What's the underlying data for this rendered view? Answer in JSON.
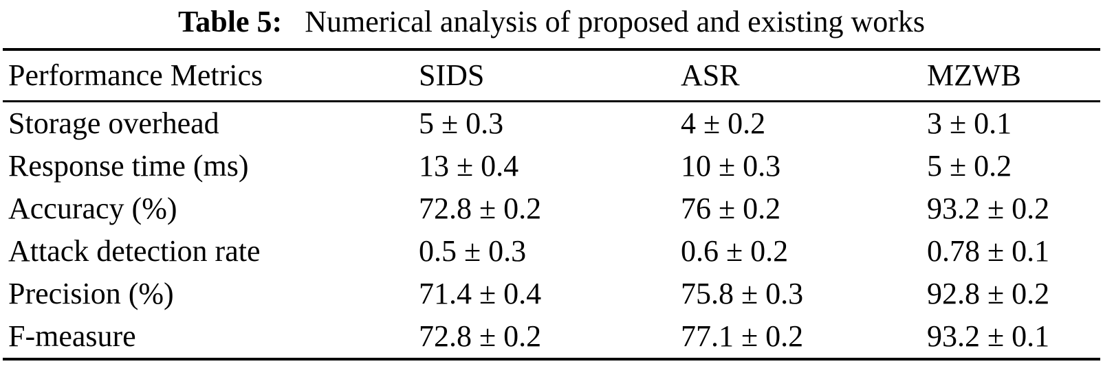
{
  "caption": {
    "label": "Table 5:",
    "text": "Numerical analysis of proposed and existing works"
  },
  "table": {
    "columns": [
      "Performance Metrics",
      "SIDS",
      "ASR",
      "MZWB"
    ],
    "rows": [
      [
        "Storage overhead",
        "5 ± 0.3",
        "4 ± 0.2",
        "3 ± 0.1"
      ],
      [
        "Response time (ms)",
        "13 ± 0.4",
        "10 ± 0.3",
        "5 ± 0.2"
      ],
      [
        "Accuracy (%)",
        "72.8 ± 0.2",
        "76 ± 0.2",
        "93.2 ± 0.2"
      ],
      [
        "Attack detection rate",
        "0.5 ± 0.3",
        "0.6 ± 0.2",
        "0.78 ± 0.1"
      ],
      [
        "Precision (%)",
        "71.4 ± 0.4",
        "75.8 ± 0.3",
        "92.8 ± 0.2"
      ],
      [
        "F-measure",
        "72.8 ± 0.2",
        "77.1 ± 0.2",
        "93.2 ± 0.1"
      ]
    ]
  }
}
